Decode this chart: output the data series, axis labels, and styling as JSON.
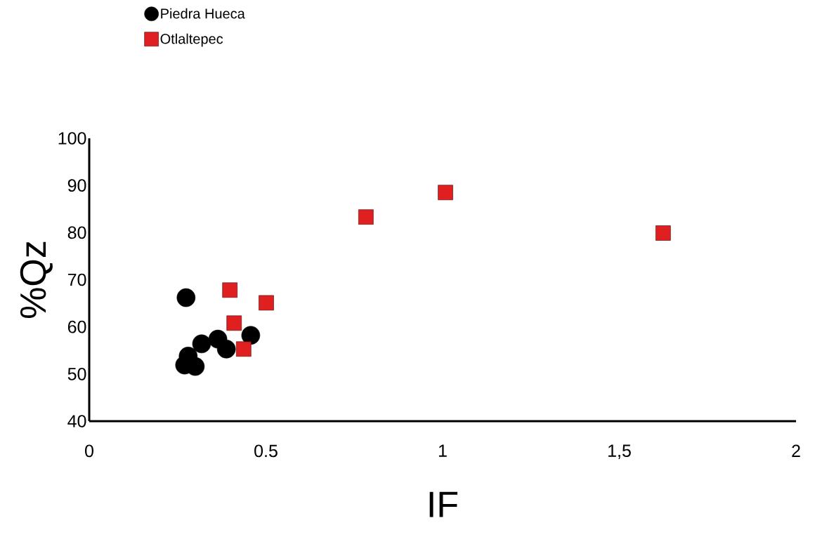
{
  "chart_data": {
    "type": "scatter",
    "xlabel": "IF",
    "ylabel": "%Qz",
    "xlim": [
      0,
      2
    ],
    "ylim": [
      40,
      100
    ],
    "xticks": [
      0,
      0.5,
      1,
      {
        "value": 1.5,
        "label": "1,5"
      },
      2
    ],
    "yticks": [
      40,
      50,
      60,
      70,
      80,
      90,
      100
    ],
    "legend": "top left",
    "series": [
      {
        "name": "Piedra Hueca",
        "color": "#000000",
        "marker": "circle",
        "x": [
          0.274,
          0.27,
          0.3,
          0.28,
          0.318,
          0.364,
          0.388,
          0.457
        ],
        "values": [
          66.2,
          51.9,
          51.6,
          53.8,
          56.4,
          57.4,
          55.3,
          58.2
        ]
      },
      {
        "name": "Otlaltepec",
        "color": "#e02020",
        "marker": "square",
        "x": [
          0.398,
          0.501,
          0.41,
          0.437,
          0.783,
          1.008,
          1.624
        ],
        "values": [
          67.8,
          65.1,
          60.8,
          55.3,
          83.3,
          88.5,
          79.9
        ]
      }
    ]
  }
}
